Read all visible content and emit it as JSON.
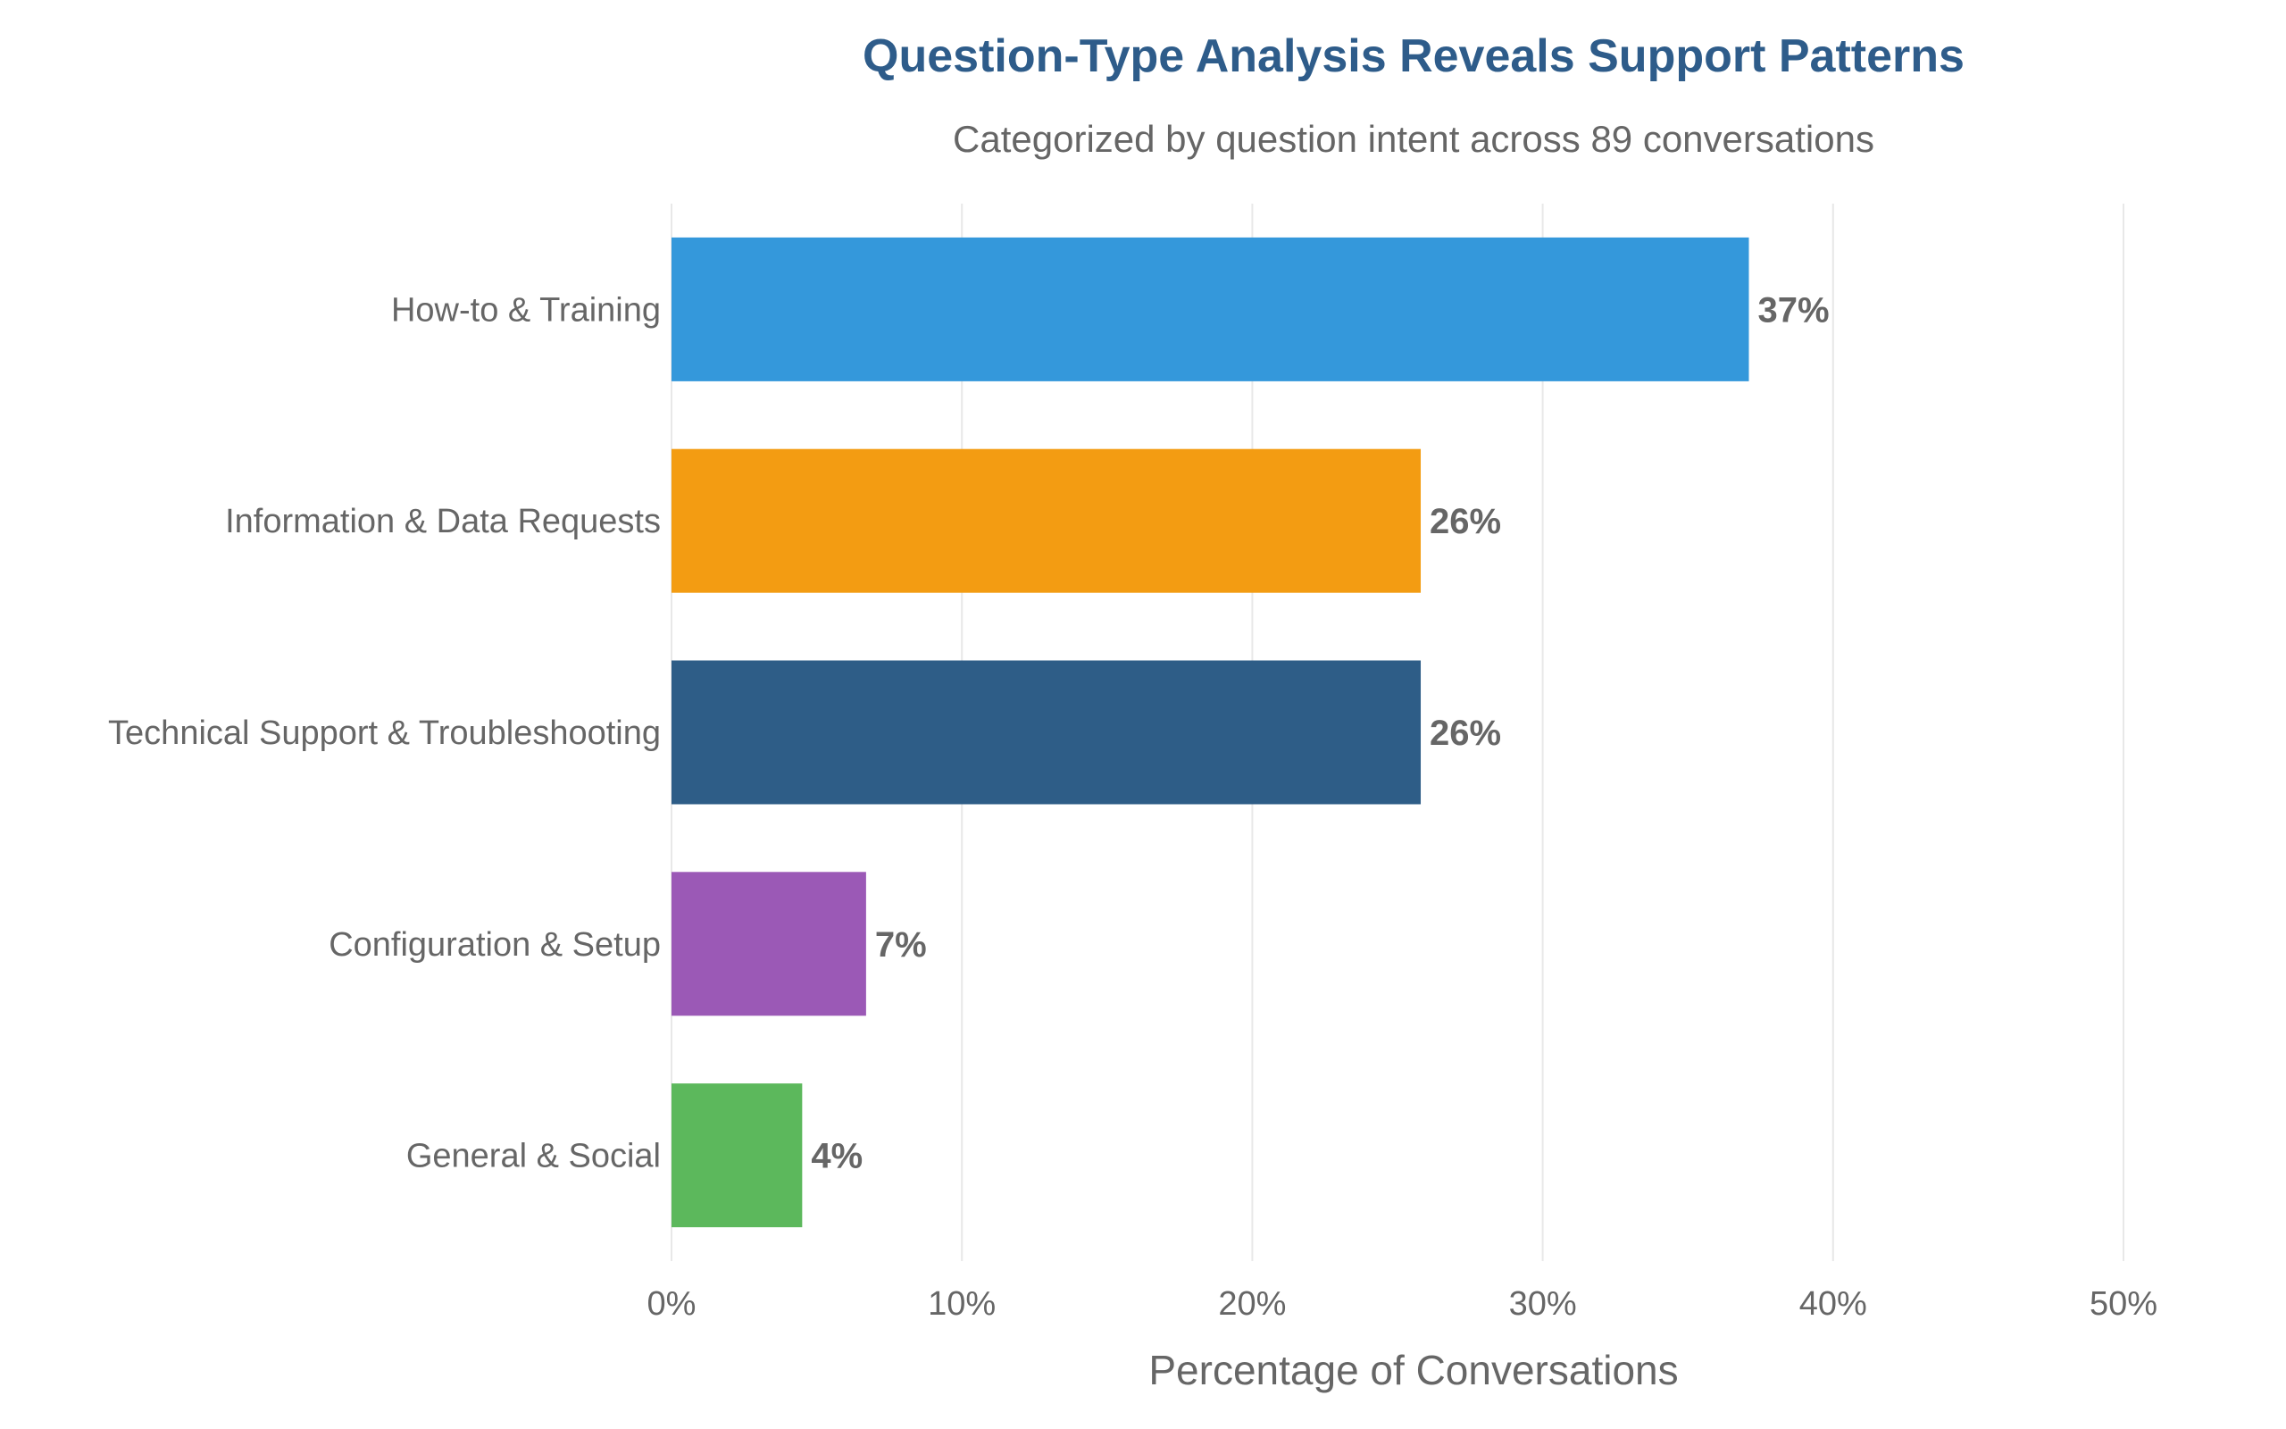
{
  "chart_data": {
    "type": "bar",
    "orientation": "horizontal",
    "title": "Question-Type Analysis Reveals Support Patterns",
    "subtitle": "Categorized by question intent across 89 conversations",
    "xlabel": "Percentage of Conversations",
    "ylabel": "",
    "xlim": [
      0,
      50
    ],
    "x_ticks": [
      "0%",
      "10%",
      "20%",
      "30%",
      "40%",
      "50%"
    ],
    "grid": "vertical",
    "categories": [
      "How-to & Training",
      "Information & Data Requests",
      "Technical Support & Troubleshooting",
      "Configuration & Setup",
      "General & Social"
    ],
    "values": [
      37.1,
      25.8,
      25.8,
      6.7,
      4.5
    ],
    "data_labels": [
      "37%",
      "26%",
      "26%",
      "7%",
      "4%"
    ],
    "colors": [
      "#3498db",
      "#f39c12",
      "#2e5d87",
      "#9b59b6",
      "#5cb85c"
    ]
  }
}
